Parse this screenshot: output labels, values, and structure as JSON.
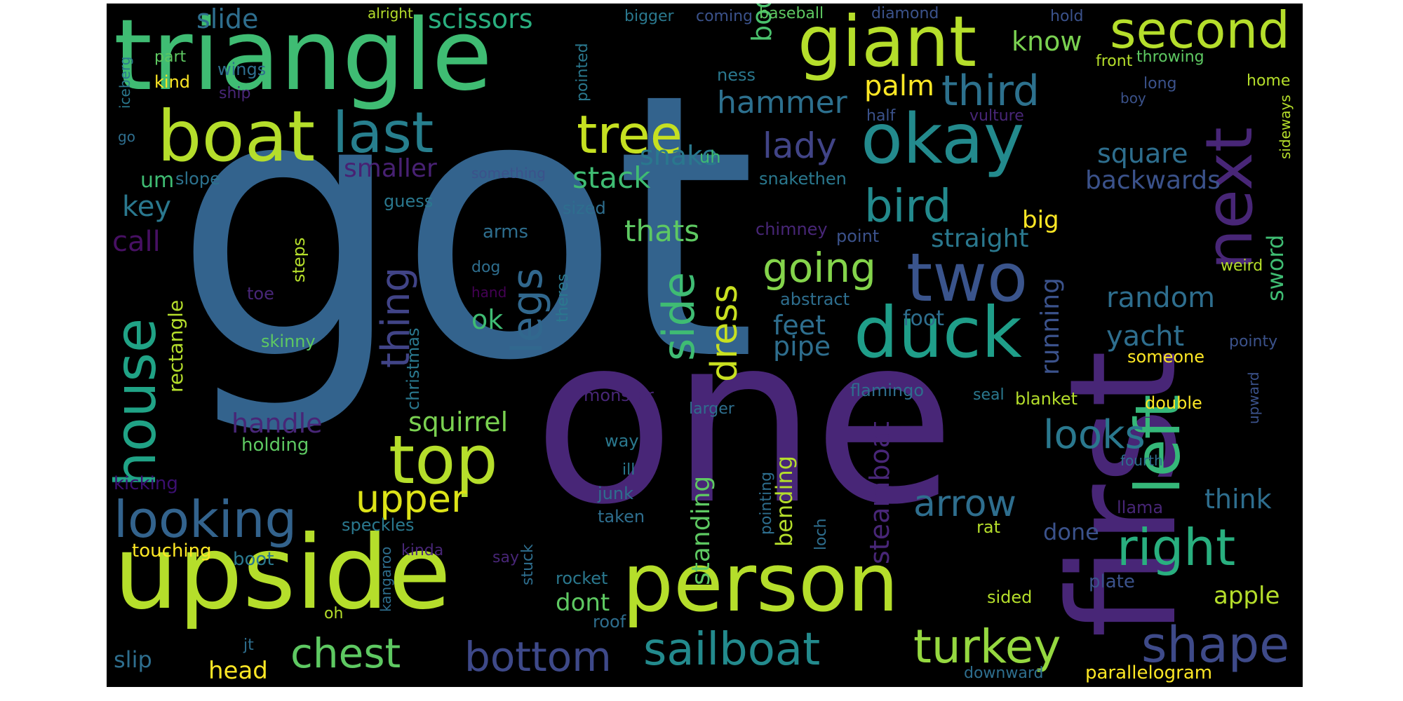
{
  "word_cloud": {
    "background": "#000000",
    "palette": [
      "#440154",
      "#3b528b",
      "#21918c",
      "#5ec962",
      "#fde725"
    ],
    "words": [
      {
        "text": "got",
        "color": "#33638d"
      },
      {
        "text": "one",
        "color": "#482677"
      },
      {
        "text": "first",
        "color": "#482677"
      },
      {
        "text": "triangle",
        "color": "#3fbc73"
      },
      {
        "text": "upside",
        "color": "#b5de2b"
      },
      {
        "text": "person",
        "color": "#b5de2b"
      },
      {
        "text": "boat",
        "color": "#b5de2b"
      },
      {
        "text": "giant",
        "color": "#b5de2b"
      },
      {
        "text": "okay",
        "color": "#238a8d"
      },
      {
        "text": "next",
        "color": "#482677"
      },
      {
        "text": "duck",
        "color": "#1f9e89"
      },
      {
        "text": "two",
        "color": "#3a548c"
      },
      {
        "text": "left",
        "color": "#35b779"
      },
      {
        "text": "house",
        "color": "#20a386"
      },
      {
        "text": "top",
        "color": "#b5de2b"
      },
      {
        "text": "last",
        "color": "#277f8e"
      },
      {
        "text": "second",
        "color": "#b5de2b"
      },
      {
        "text": "tree",
        "color": "#c5e021"
      },
      {
        "text": "looking",
        "color": "#33638d"
      },
      {
        "text": "right",
        "color": "#29af7f"
      },
      {
        "text": "shape",
        "color": "#3e4a89"
      },
      {
        "text": "sailboat",
        "color": "#238a8d"
      },
      {
        "text": "turkey",
        "color": "#95d840"
      },
      {
        "text": "chest",
        "color": "#5ec962"
      },
      {
        "text": "bottom",
        "color": "#3e4989"
      },
      {
        "text": "bird",
        "color": "#238a8d"
      },
      {
        "text": "third",
        "color": "#2d718e"
      },
      {
        "text": "going",
        "color": "#84d44b"
      },
      {
        "text": "side",
        "color": "#3fbc73"
      },
      {
        "text": "dress",
        "color": "#c8e020"
      },
      {
        "text": "legs",
        "color": "#31688e"
      },
      {
        "text": "thing",
        "color": "#414487"
      },
      {
        "text": "upper",
        "color": "#dde318"
      },
      {
        "text": "looks",
        "color": "#2a788e"
      },
      {
        "text": "arrow",
        "color": "#2e6e8e"
      },
      {
        "text": "lady",
        "color": "#414487"
      },
      {
        "text": "hammer",
        "color": "#2d708e"
      },
      {
        "text": "stack",
        "color": "#3fbc73"
      },
      {
        "text": "scissors",
        "color": "#29af7f"
      },
      {
        "text": "slide",
        "color": "#2e6e8e"
      },
      {
        "text": "body",
        "color": "#4ac16d"
      },
      {
        "text": "know",
        "color": "#7ad151"
      },
      {
        "text": "palm",
        "color": "#fde725"
      },
      {
        "text": "snake",
        "color": "#2a788e"
      },
      {
        "text": "smaller",
        "color": "#482173"
      },
      {
        "text": "square",
        "color": "#2e6e8e"
      },
      {
        "text": "backwards",
        "color": "#3b528b"
      },
      {
        "text": "straight",
        "color": "#2a788e"
      },
      {
        "text": "big",
        "color": "#fde725"
      },
      {
        "text": "random",
        "color": "#2e6e8e"
      },
      {
        "text": "running",
        "color": "#3b528b"
      },
      {
        "text": "sword",
        "color": "#3fbc73"
      },
      {
        "text": "yacht",
        "color": "#2e6e8e"
      },
      {
        "text": "thats",
        "color": "#5ec962"
      },
      {
        "text": "key",
        "color": "#2a788e"
      },
      {
        "text": "call",
        "color": "#471063"
      },
      {
        "text": "um",
        "color": "#3fbc73"
      },
      {
        "text": "slope",
        "color": "#2c728e"
      },
      {
        "text": "feet",
        "color": "#2e6e8e"
      },
      {
        "text": "pipe",
        "color": "#2e6e8e"
      },
      {
        "text": "ok",
        "color": "#3fbc73"
      },
      {
        "text": "handle",
        "color": "#482677"
      },
      {
        "text": "squirrel",
        "color": "#7ad151"
      },
      {
        "text": "rectangle",
        "color": "#b5de2b"
      },
      {
        "text": "standing",
        "color": "#5ec962"
      },
      {
        "text": "bending",
        "color": "#b5de2b"
      },
      {
        "text": "steamboat",
        "color": "#482677"
      },
      {
        "text": "think",
        "color": "#2e6e8e"
      },
      {
        "text": "apple",
        "color": "#b5de2b"
      },
      {
        "text": "done",
        "color": "#3b528b"
      },
      {
        "text": "dont",
        "color": "#5ec962"
      },
      {
        "text": "slip",
        "color": "#2e6e8e"
      },
      {
        "text": "head",
        "color": "#fde725"
      },
      {
        "text": "touching",
        "color": "#fde725"
      },
      {
        "text": "boot",
        "color": "#2a788e"
      },
      {
        "text": "kicking",
        "color": "#3b0f70"
      },
      {
        "text": "holding",
        "color": "#5ec962"
      },
      {
        "text": "skinny",
        "color": "#5ec962"
      },
      {
        "text": "christmas",
        "color": "#2a788e"
      },
      {
        "text": "steps",
        "color": "#b5de2b"
      },
      {
        "text": "toe",
        "color": "#482677"
      },
      {
        "text": "arms",
        "color": "#2e6e8e"
      },
      {
        "text": "dog",
        "color": "#2e6e8e"
      },
      {
        "text": "hand",
        "color": "#440154"
      },
      {
        "text": "theres",
        "color": "#2a788e"
      },
      {
        "text": "guess",
        "color": "#2a788e"
      },
      {
        "text": "sized",
        "color": "#2e6e8e"
      },
      {
        "text": "something",
        "color": "#3b528b"
      },
      {
        "text": "snakethen",
        "color": "#2a788e"
      },
      {
        "text": "uh",
        "color": "#3fbc73"
      },
      {
        "text": "chimney",
        "color": "#482677"
      },
      {
        "text": "point",
        "color": "#3b528b"
      },
      {
        "text": "abstract",
        "color": "#2e6e8e"
      },
      {
        "text": "foot",
        "color": "#2e6e8e"
      },
      {
        "text": "flamingo",
        "color": "#2e6e8e"
      },
      {
        "text": "seal",
        "color": "#2a788e"
      },
      {
        "text": "blanket",
        "color": "#b5de2b"
      },
      {
        "text": "monster",
        "color": "#482677"
      },
      {
        "text": "larger",
        "color": "#2e6e8e"
      },
      {
        "text": "way",
        "color": "#2a788e"
      },
      {
        "text": "ill",
        "color": "#2a788e"
      },
      {
        "text": "junk",
        "color": "#2e6e8e"
      },
      {
        "text": "taken",
        "color": "#2e6e8e"
      },
      {
        "text": "pointing",
        "color": "#2e6e8e"
      },
      {
        "text": "loch",
        "color": "#2e6e8e"
      },
      {
        "text": "rat",
        "color": "#b5de2b"
      },
      {
        "text": "speckles",
        "color": "#2a788e"
      },
      {
        "text": "kangaroo",
        "color": "#2e6e8e"
      },
      {
        "text": "kinda",
        "color": "#482677"
      },
      {
        "text": "stuck",
        "color": "#2e6e8e"
      },
      {
        "text": "say",
        "color": "#482677"
      },
      {
        "text": "rocket",
        "color": "#2a788e"
      },
      {
        "text": "roof",
        "color": "#2e6e8e"
      },
      {
        "text": "oh",
        "color": "#b5de2b"
      },
      {
        "text": "jt",
        "color": "#2e6e8e"
      },
      {
        "text": "sided",
        "color": "#b5de2b"
      },
      {
        "text": "downward",
        "color": "#2e6e8e"
      },
      {
        "text": "parallelogram",
        "color": "#fde725"
      },
      {
        "text": "plate",
        "color": "#3b528b"
      },
      {
        "text": "llama",
        "color": "#482677"
      },
      {
        "text": "fourth",
        "color": "#2e6e8e"
      },
      {
        "text": "double",
        "color": "#fde725"
      },
      {
        "text": "someone",
        "color": "#fde725"
      },
      {
        "text": "upward",
        "color": "#3b528b"
      },
      {
        "text": "pointy",
        "color": "#3b528b"
      },
      {
        "text": "weird",
        "color": "#b5de2b"
      },
      {
        "text": "sideways",
        "color": "#b5de2b"
      },
      {
        "text": "home",
        "color": "#b5de2b"
      },
      {
        "text": "long",
        "color": "#3b528b"
      },
      {
        "text": "boy",
        "color": "#3b528b"
      },
      {
        "text": "vulture",
        "color": "#482677"
      },
      {
        "text": "half",
        "color": "#3b528b"
      },
      {
        "text": "ness",
        "color": "#2a788e"
      },
      {
        "text": "front",
        "color": "#b5de2b"
      },
      {
        "text": "throwing",
        "color": "#5ec962"
      },
      {
        "text": "hold",
        "color": "#3b528b"
      },
      {
        "text": "diamond",
        "color": "#3b528b"
      },
      {
        "text": "baseball",
        "color": "#5ec962"
      },
      {
        "text": "coming",
        "color": "#3b528b"
      },
      {
        "text": "bigger",
        "color": "#2a788e"
      },
      {
        "text": "pointed",
        "color": "#2a788e"
      },
      {
        "text": "alright",
        "color": "#b5de2b"
      },
      {
        "text": "part",
        "color": "#5ec962"
      },
      {
        "text": "kind",
        "color": "#fde725"
      },
      {
        "text": "wings",
        "color": "#2e6e8e"
      },
      {
        "text": "ship",
        "color": "#482677"
      },
      {
        "text": "iceberg",
        "color": "#2a788e"
      },
      {
        "text": "go",
        "color": "#2e6e8e"
      }
    ]
  }
}
